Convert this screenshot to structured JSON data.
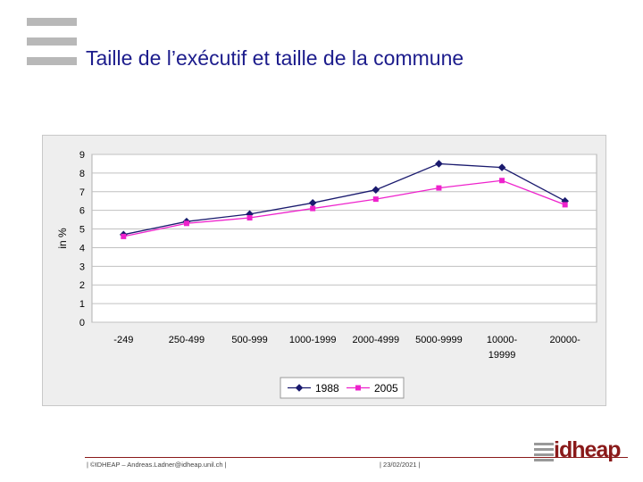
{
  "slide": {
    "title": "Taille de l’exécutif et taille de la commune",
    "footer_left": "| ©IDHEAP – Andreas.Ladner@idheap.unil.ch |",
    "footer_date": "| 23/02/2021 |",
    "brand": "idheap"
  },
  "chart_data": {
    "type": "line",
    "title": "",
    "xlabel": "",
    "ylabel": "in %",
    "categories": [
      "-249",
      "250-499",
      "500-999",
      "1000-1999",
      "2000-4999",
      "5000-9999",
      "10000-19999",
      "20000-"
    ],
    "category_lines": [
      [
        "-249"
      ],
      [
        "250-499"
      ],
      [
        "500-999"
      ],
      [
        "1000-1999"
      ],
      [
        "2000-4999"
      ],
      [
        "5000-9999"
      ],
      [
        "10000-",
        "19999"
      ],
      [
        "20000-"
      ]
    ],
    "ylim": [
      0,
      9
    ],
    "yticks": [
      0,
      1,
      2,
      3,
      4,
      5,
      6,
      7,
      8,
      9
    ],
    "grid": true,
    "legend": "bottom",
    "series": [
      {
        "name": "1988",
        "color": "#1a1a6e",
        "marker": "diamond",
        "values": [
          4.7,
          5.4,
          5.8,
          6.4,
          7.1,
          8.5,
          8.3,
          6.5
        ]
      },
      {
        "name": "2005",
        "color": "#ee22cc",
        "marker": "square",
        "values": [
          4.6,
          5.3,
          5.6,
          6.1,
          6.6,
          7.2,
          7.6,
          6.3
        ]
      }
    ]
  }
}
